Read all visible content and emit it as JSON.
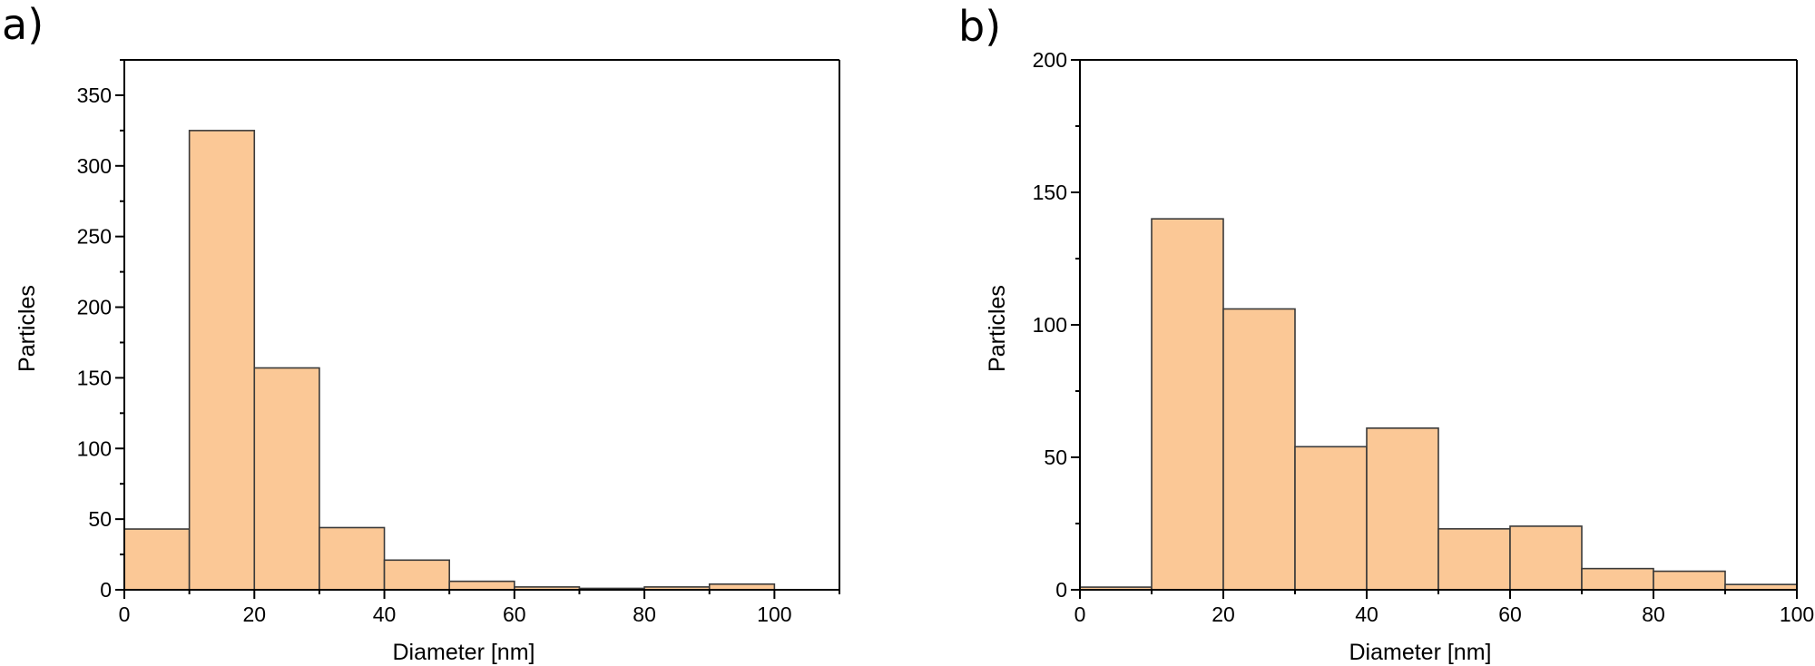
{
  "panels": [
    {
      "label": "a)"
    },
    {
      "label": "b)"
    }
  ],
  "style": {
    "bar_fill": "#FBC896",
    "bar_stroke": "#3a3a3a",
    "axis_color": "#000000"
  },
  "chart_data": [
    {
      "type": "bar",
      "panel": "a)",
      "title": "",
      "xlabel": "Diameter [nm]",
      "ylabel": "Particles",
      "bin_edges": [
        0,
        10,
        20,
        30,
        40,
        50,
        60,
        70,
        80,
        90,
        100
      ],
      "categories": [
        "0-10",
        "10-20",
        "20-30",
        "30-40",
        "40-50",
        "50-60",
        "60-70",
        "70-80",
        "80-90",
        "90-100"
      ],
      "values": [
        43,
        325,
        157,
        44,
        21,
        6,
        2,
        1,
        2,
        4
      ],
      "xlim": [
        0,
        110
      ],
      "ylim": [
        0,
        375
      ],
      "xticks": [
        0,
        20,
        40,
        60,
        80,
        100
      ],
      "yticks": [
        0,
        50,
        100,
        150,
        200,
        250,
        300,
        350
      ],
      "grid": false,
      "legend": null
    },
    {
      "type": "bar",
      "panel": "b)",
      "title": "",
      "xlabel": "Diameter [nm]",
      "ylabel": "Particles",
      "bin_edges": [
        0,
        10,
        20,
        30,
        40,
        50,
        60,
        70,
        80,
        90,
        100
      ],
      "categories": [
        "0-10",
        "10-20",
        "20-30",
        "30-40",
        "40-50",
        "50-60",
        "60-70",
        "70-80",
        "80-90",
        "90-100"
      ],
      "values": [
        1,
        140,
        106,
        54,
        61,
        23,
        24,
        8,
        7,
        2
      ],
      "xlim": [
        0,
        100
      ],
      "ylim": [
        0,
        200
      ],
      "xticks": [
        0,
        20,
        40,
        60,
        80,
        100
      ],
      "yticks": [
        0,
        50,
        100,
        150,
        200
      ],
      "grid": false,
      "legend": null
    }
  ]
}
